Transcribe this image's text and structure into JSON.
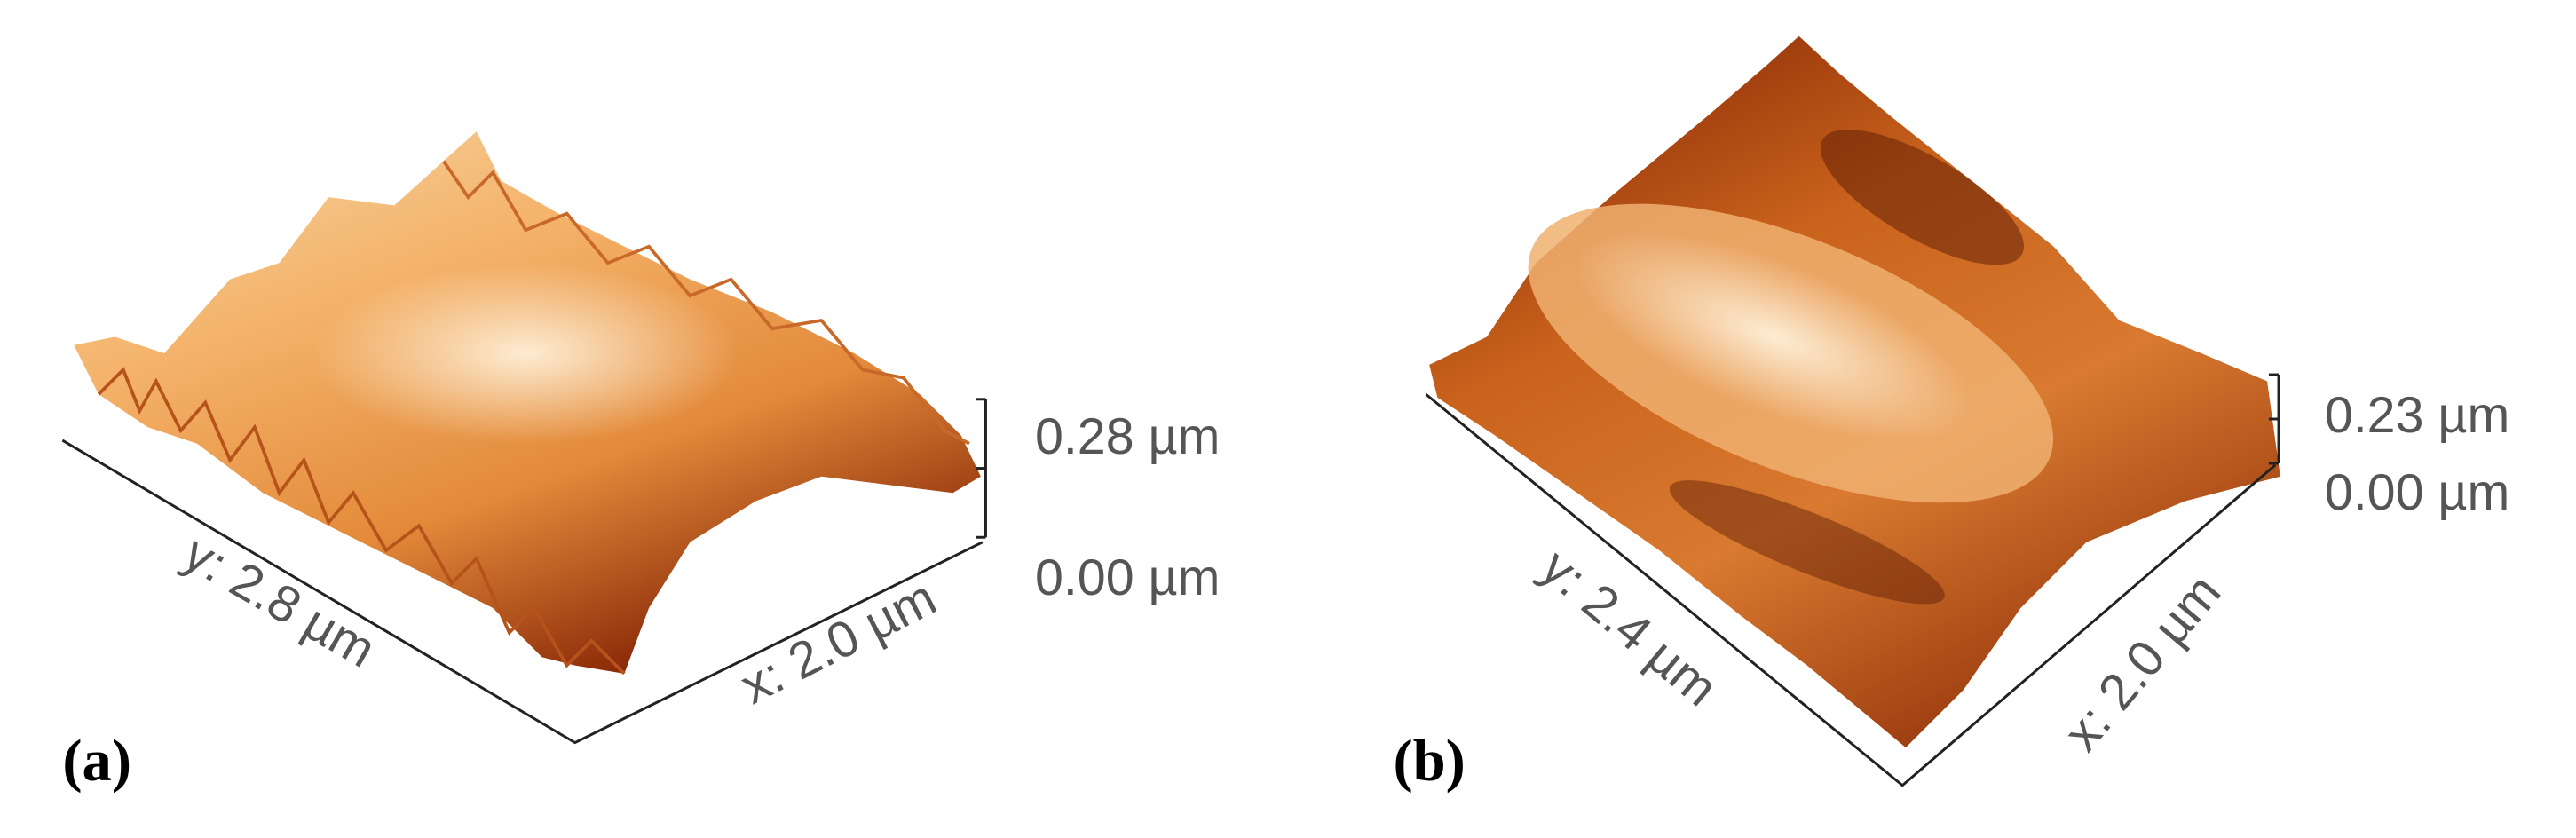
{
  "panels": [
    {
      "label": "(a)",
      "y_axis": "y: 2.8 µm",
      "x_axis": "x: 2.0 µm",
      "z_top": "0.28 µm",
      "z_bottom": "0.00 µm"
    },
    {
      "label": "(b)",
      "y_axis": "y: 2.4 µm",
      "x_axis": "x: 2.0 µm",
      "z_top": "0.23 µm",
      "z_bottom": "0.00 µm"
    }
  ]
}
